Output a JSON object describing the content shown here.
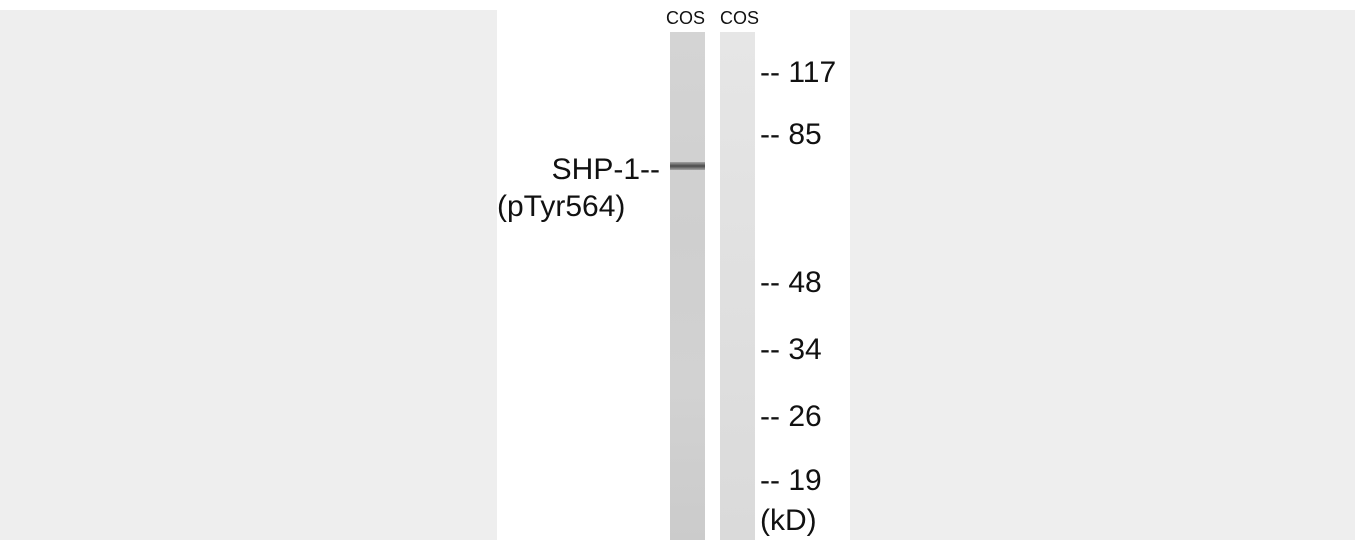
{
  "lanes": [
    "COS",
    "COS"
  ],
  "target": {
    "name": "SHP-1--",
    "modification": "(pTyr564)"
  },
  "markers": [
    "-- 117",
    "-- 85",
    "-- 48",
    "-- 34",
    "-- 26",
    "-- 19"
  ],
  "unit": "(kD)"
}
